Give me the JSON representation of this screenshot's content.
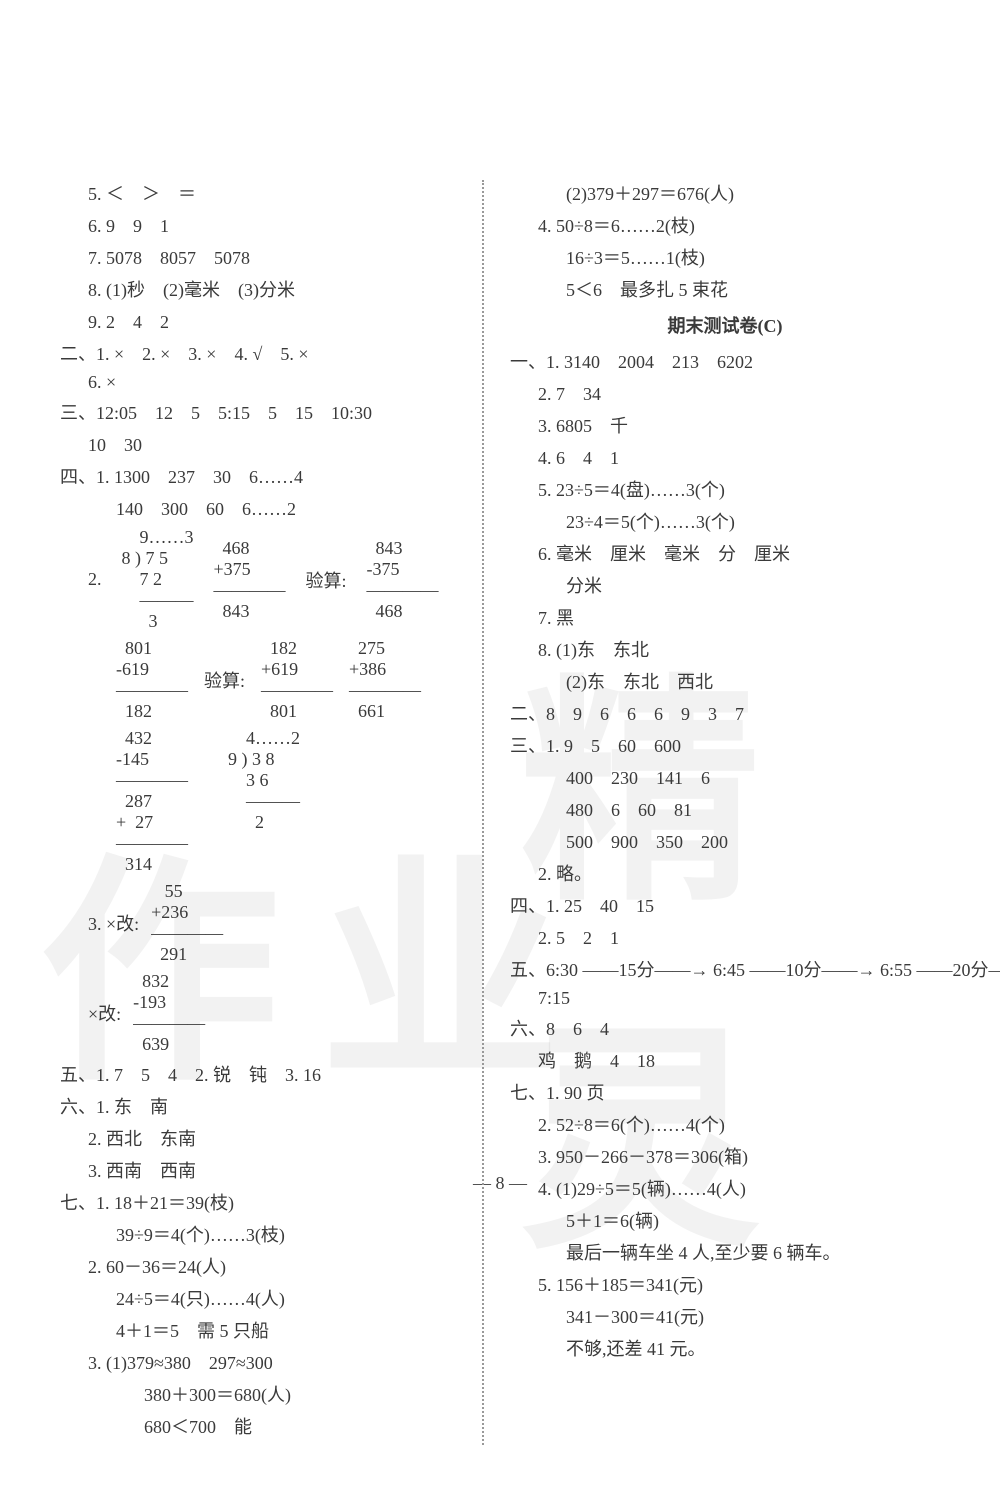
{
  "page_number": "— 8 —",
  "watermark_left": "作业",
  "watermark_right": "精灵",
  "left_col": {
    "l5": "5. ＜　＞　＝",
    "l6": "6. 9　9　1",
    "l7": "7. 5078　8057　5078",
    "l8": "8. (1)秒　(2)毫米　(3)分米",
    "l9": "9. 2　4　2",
    "sec2": "二、1. ×　2. ×　3. ×　4. √　5. ×",
    "sec2b": "6. ×",
    "sec3": "三、12:05　12　5　5:15　5　15　10:30",
    "sec3b": "10　30",
    "sec4": "四、1. 1300　237　30　6……4",
    "sec4b": "140　300　60　6……2",
    "calc2_label": "2.",
    "calc2_div": "    9……3\n8 ) 7 5\n    7 2\n    ———\n      3",
    "calc2_add": "  468\n+375\n————\n  843",
    "calc2_check_label": "验算:",
    "calc2_sub": "  843\n-375\n————\n  468",
    "calc_row2a": "  801\n-619\n————\n  182",
    "calc_row2_check": "验算:",
    "calc_row2b": "  182\n+619\n————\n  801",
    "calc_row2c": "  275\n+386\n————\n  661",
    "calc_row3a": "  432\n-145\n————\n  287\n+  27\n————\n  314",
    "calc_row3b": "    4……2\n9 ) 3 8\n    3 6\n    ———\n      2",
    "calc3_label": "3. ×改:",
    "calc3a": "   55\n+236\n————\n  291",
    "calc3b_label": "×改:",
    "calc3b": "  832\n-193\n————\n  639",
    "sec5": "五、1. 7　5　4　2. 锐　钝　3. 16",
    "sec6_1": "六、1. 东　南",
    "sec6_2": "2. 西北　东南",
    "sec6_3": "3. 西南　西南",
    "sec7_1": "七、1. 18＋21＝39(枝)",
    "sec7_1b": "39÷9＝4(个)……3(枝)",
    "sec7_2": "2. 60－36＝24(人)",
    "sec7_2b": "24÷5＝4(只)……4(人)",
    "sec7_2c": "4＋1＝5　需 5 只船",
    "sec7_3": "3. (1)379≈380　297≈300",
    "sec7_3b": "380＋300＝680(人)",
    "sec7_3c": "680＜700　能"
  },
  "right_col": {
    "r1": "(2)379＋297＝676(人)",
    "r2": "4. 50÷8＝6……2(枝)",
    "r2b": "16÷3＝5……1(枝)",
    "r2c": "5＜6　最多扎 5 束花",
    "title_c": "期末测试卷(C)",
    "c1_1": "一、1. 3140　2004　213　6202",
    "c1_2": "2. 7　34",
    "c1_3": "3. 6805　千",
    "c1_4": "4. 6　4　1",
    "c1_5": "5. 23÷5＝4(盘)……3(个)",
    "c1_5b": "23÷4＝5(个)……3(个)",
    "c1_6": "6. 毫米　厘米　毫米　分　厘米",
    "c1_6b": "分米",
    "c1_7": "7. 黑",
    "c1_8": "8. (1)东　东北",
    "c1_8b": "(2)东　东北　西北",
    "c2": "二、8　9　6　6　6　9　3　7",
    "c3_1": "三、1. 9　5　60　600",
    "c3_1b": "400　230　141　6",
    "c3_1c": "480　6　60　81",
    "c3_1d": "500　900　350　200",
    "c3_2": "2. 略。",
    "c4_1": "四、1. 25　40　15",
    "c4_2": "2. 5　2　1",
    "c5": "五、6:30 ——15分——→ 6:45 ——10分——→ 6:55 ——20分——→",
    "c5b": "7:15",
    "c6": "六、8　6　4",
    "c6b": "鸡　鹅　4　18",
    "c7_1": "七、1. 90 页",
    "c7_2": "2. 52÷8＝6(个)……4(个)",
    "c7_3": "3. 950－266－378＝306(箱)",
    "c7_4": "4. (1)29÷5＝5(辆)……4(人)",
    "c7_4b": "5＋1＝6(辆)",
    "c7_4c": "最后一辆车坐 4 人,至少要 6 辆车。",
    "c7_5": "5. 156＋185＝341(元)",
    "c7_5b": "341－300＝41(元)",
    "c7_5c": "不够,还差 41 元。"
  }
}
